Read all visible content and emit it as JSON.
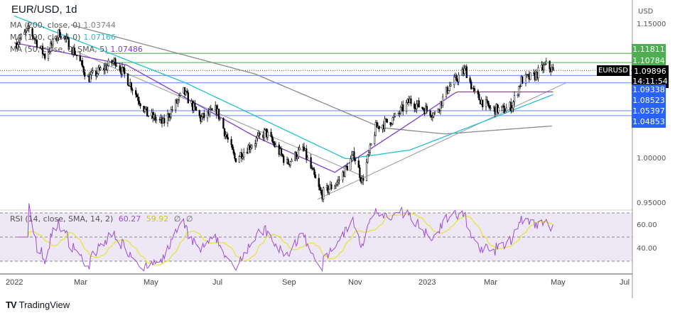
{
  "header": {
    "title": "EUR/USD, 1d"
  },
  "legend": [
    {
      "label": "MA (200, close, 0)",
      "value": "1.03744",
      "color": "#808080"
    },
    {
      "label": "MA (100, close, 0)",
      "value": "1.07166",
      "color": "#22c1d6"
    },
    {
      "label": "MA (50, close, 0, SMA, 5)",
      "value": "1.07486",
      "color": "#7e3fd0"
    }
  ],
  "rsi_legend": {
    "label": "RSI (14, close, SMA, 14, 2)",
    "rsi": "60.27",
    "sma": "59.92",
    "extra1": "∅",
    "extra2": "∅",
    "rsi_color": "#9c4fd6",
    "sma_color": "#e6e62e"
  },
  "price_axis": {
    "currency": "USD",
    "ticks": [
      "1.15000",
      "1.00000",
      "0.95000"
    ]
  },
  "rsi_axis": {
    "ticks": [
      "60.00",
      "40.00"
    ]
  },
  "time_axis": [
    "2022",
    "Mar",
    "May",
    "Jul",
    "Sep",
    "Nov",
    "2023",
    "Mar",
    "May",
    "Jul"
  ],
  "price_labels": [
    {
      "value": "1.11811",
      "color": "#4caf50"
    },
    {
      "value": "1.10784",
      "color": "#4caf50"
    },
    {
      "value": "1.09338",
      "color": "#2962ff"
    },
    {
      "value": "1.08523",
      "color": "#2962ff"
    },
    {
      "value": "1.05397",
      "color": "#2962ff"
    },
    {
      "value": "1.04853",
      "color": "#2962ff"
    }
  ],
  "current": {
    "symbol": "EURUSD",
    "price": "1.09896",
    "countdown": "14:11:54"
  },
  "brand": {
    "name": "TradingView"
  },
  "chart_data": {
    "type": "candlestick",
    "symbol": "EUR/USD",
    "interval": "1d",
    "ylim": [
      0.94,
      1.16
    ],
    "close_path": [
      [
        "2022-01-03",
        1.13
      ],
      [
        "2022-01-14",
        1.145
      ],
      [
        "2022-01-28",
        1.115
      ],
      [
        "2022-02-10",
        1.142
      ],
      [
        "2022-02-24",
        1.118
      ],
      [
        "2022-03-07",
        1.09
      ],
      [
        "2022-03-31",
        1.11
      ],
      [
        "2022-04-14",
        1.082
      ],
      [
        "2022-04-28",
        1.05
      ],
      [
        "2022-05-12",
        1.04
      ],
      [
        "2022-05-30",
        1.075
      ],
      [
        "2022-06-14",
        1.045
      ],
      [
        "2022-06-28",
        1.055
      ],
      [
        "2022-07-14",
        1.0
      ],
      [
        "2022-08-10",
        1.03
      ],
      [
        "2022-08-29",
        0.995
      ],
      [
        "2022-09-12",
        1.012
      ],
      [
        "2022-09-28",
        0.96
      ],
      [
        "2022-10-13",
        0.975
      ],
      [
        "2022-10-27",
        1.005
      ],
      [
        "2022-11-03",
        0.975
      ],
      [
        "2022-11-15",
        1.035
      ],
      [
        "2022-12-01",
        1.045
      ],
      [
        "2022-12-15",
        1.065
      ],
      [
        "2023-01-06",
        1.05
      ],
      [
        "2023-01-18",
        1.08
      ],
      [
        "2023-02-02",
        1.1
      ],
      [
        "2023-02-10",
        1.072
      ],
      [
        "2023-02-24",
        1.056
      ],
      [
        "2023-03-08",
        1.055
      ],
      [
        "2023-03-15",
        1.06
      ],
      [
        "2023-03-23",
        1.088
      ],
      [
        "2023-04-03",
        1.092
      ],
      [
        "2023-04-14",
        1.105
      ],
      [
        "2023-04-20",
        1.099
      ]
    ],
    "ma200": [
      [
        "2022-02-20",
        1.15
      ],
      [
        "2022-08-01",
        1.095
      ],
      [
        "2022-11-20",
        1.035
      ],
      [
        "2023-01-15",
        1.028
      ],
      [
        "2023-04-20",
        1.037
      ]
    ],
    "ma100": [
      [
        "2022-01-01",
        1.16
      ],
      [
        "2022-06-01",
        1.085
      ],
      [
        "2022-10-20",
        1.0
      ],
      [
        "2022-12-15",
        1.01
      ],
      [
        "2023-04-20",
        1.072
      ]
    ],
    "ma50": [
      [
        "2022-01-01",
        1.13
      ],
      [
        "2022-04-10",
        1.105
      ],
      [
        "2022-08-01",
        1.025
      ],
      [
        "2022-10-10",
        0.985
      ],
      [
        "2022-12-15",
        1.04
      ],
      [
        "2023-01-25",
        1.075
      ],
      [
        "2023-04-20",
        1.075
      ]
    ],
    "levels": [
      1.11811,
      1.10784,
      1.09338,
      1.08523,
      1.05397,
      1.04853
    ],
    "trendlines": [
      {
        "from": [
          "2022-02-25",
          1.12
        ],
        "to": [
          "2022-11-05",
          0.98
        ]
      },
      {
        "from": [
          "2022-09-25",
          0.955
        ],
        "to": [
          "2023-05-01",
          1.085
        ]
      }
    ],
    "rsi": {
      "ylim": [
        25,
        75
      ],
      "bands": [
        70,
        50,
        30
      ],
      "last": 60.27,
      "sma_last": 59.92
    }
  }
}
